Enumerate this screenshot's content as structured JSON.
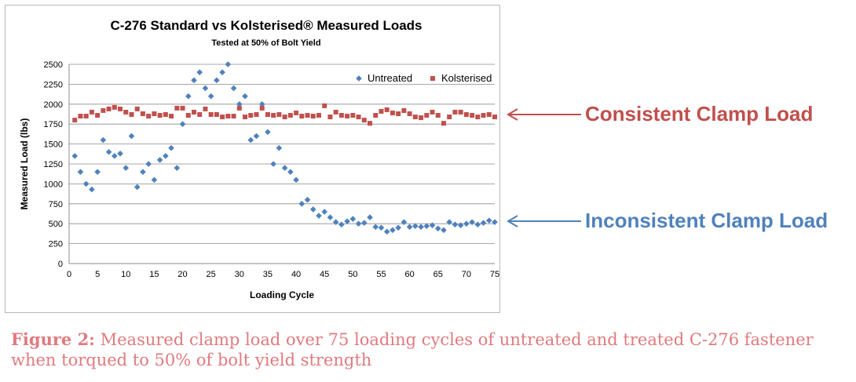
{
  "chart_data": {
    "type": "scatter",
    "title": "C-276 Standard vs Kolsterised® Measured Loads",
    "subtitle": "Tested at 50% of Bolt Yield",
    "xlabel": "Loading Cycle",
    "ylabel": "Measured Load (lbs)",
    "xlim": [
      0,
      75
    ],
    "ylim": [
      0,
      2500
    ],
    "xticks": [
      0,
      5,
      10,
      15,
      20,
      25,
      30,
      35,
      40,
      45,
      50,
      55,
      60,
      65,
      70,
      75
    ],
    "yticks": [
      0,
      250,
      500,
      750,
      1000,
      1250,
      1500,
      1750,
      2000,
      2250,
      2500
    ],
    "grid": "horizontal",
    "legend_position": "top-right",
    "series": [
      {
        "name": "Untreated",
        "marker": "diamond",
        "color": "#4f81bd",
        "x": [
          1,
          2,
          3,
          4,
          5,
          6,
          7,
          8,
          9,
          10,
          11,
          12,
          13,
          14,
          15,
          16,
          17,
          18,
          19,
          20,
          21,
          22,
          23,
          24,
          25,
          26,
          27,
          28,
          29,
          30,
          31,
          32,
          33,
          34,
          35,
          36,
          37,
          38,
          39,
          40,
          41,
          42,
          43,
          44,
          45,
          46,
          47,
          48,
          49,
          50,
          51,
          52,
          53,
          54,
          55,
          56,
          57,
          58,
          59,
          60,
          61,
          62,
          63,
          64,
          65,
          66,
          67,
          68,
          69,
          70,
          71,
          72,
          73,
          74,
          75
        ],
        "y": [
          1350,
          1150,
          1000,
          930,
          1150,
          1550,
          1400,
          1350,
          1380,
          1200,
          1600,
          960,
          1150,
          1250,
          1050,
          1300,
          1350,
          1450,
          1200,
          1750,
          2100,
          2300,
          2400,
          2200,
          2100,
          2300,
          2400,
          2500,
          2200,
          2000,
          2100,
          1550,
          1600,
          2000,
          1650,
          1250,
          1450,
          1200,
          1150,
          1050,
          750,
          800,
          680,
          600,
          650,
          580,
          520,
          490,
          530,
          560,
          500,
          510,
          580,
          460,
          450,
          400,
          420,
          450,
          520,
          460,
          470,
          460,
          470,
          480,
          440,
          420,
          520,
          490,
          480,
          500,
          520,
          490,
          510,
          540,
          520
        ]
      },
      {
        "name": "Kolsterised",
        "marker": "square",
        "color": "#c0504d",
        "x": [
          1,
          2,
          3,
          4,
          5,
          6,
          7,
          8,
          9,
          10,
          11,
          12,
          13,
          14,
          15,
          16,
          17,
          18,
          19,
          20,
          21,
          22,
          23,
          24,
          25,
          26,
          27,
          28,
          29,
          30,
          31,
          32,
          33,
          34,
          35,
          36,
          37,
          38,
          39,
          40,
          41,
          42,
          43,
          44,
          45,
          46,
          47,
          48,
          49,
          50,
          51,
          52,
          53,
          54,
          55,
          56,
          57,
          58,
          59,
          60,
          61,
          62,
          63,
          64,
          65,
          66,
          67,
          68,
          69,
          70,
          71,
          72,
          73,
          74,
          75
        ],
        "y": [
          1800,
          1850,
          1850,
          1900,
          1860,
          1920,
          1940,
          1960,
          1940,
          1900,
          1870,
          1940,
          1880,
          1850,
          1880,
          1860,
          1870,
          1850,
          1950,
          1950,
          1860,
          1900,
          1870,
          1940,
          1870,
          1870,
          1840,
          1850,
          1850,
          1950,
          1840,
          1860,
          1870,
          1950,
          1870,
          1860,
          1870,
          1840,
          1860,
          1890,
          1850,
          1860,
          1850,
          1860,
          1980,
          1840,
          1900,
          1860,
          1850,
          1860,
          1840,
          1800,
          1760,
          1860,
          1910,
          1930,
          1890,
          1880,
          1920,
          1880,
          1840,
          1830,
          1860,
          1900,
          1860,
          1760,
          1840,
          1900,
          1900,
          1870,
          1860,
          1840,
          1860,
          1870,
          1840
        ]
      }
    ]
  },
  "annotations": {
    "consistent_label": "Consistent  Clamp Load",
    "consistent_color": "#c0504d",
    "inconsistent_label": "Inconsistent  Clamp Load",
    "inconsistent_color": "#4f81bd"
  },
  "caption": {
    "label": "Figure 2:",
    "text": " Measured clamp load over 75 loading cycles of untreated and treated C-276 fastener when torqued to 50% of bolt yield strength",
    "color": "#e07a7f"
  }
}
